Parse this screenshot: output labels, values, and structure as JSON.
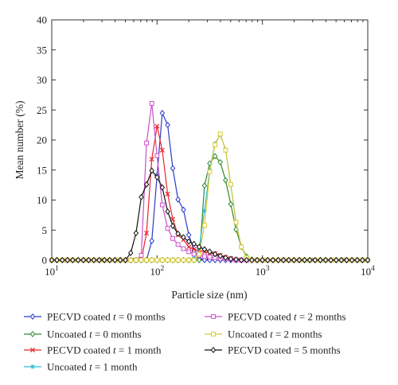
{
  "chart_data": {
    "type": "line",
    "title": "",
    "xlabel": "Particle size (nm)",
    "ylabel": "Mean number (%)",
    "xscale": "log",
    "xlim": [
      10,
      10000
    ],
    "ylim": [
      0,
      40
    ],
    "y_ticks": [
      "0",
      "5",
      "10",
      "15",
      "20",
      "25",
      "30",
      "35",
      "40"
    ],
    "x_ticks": [
      {
        "base": "10",
        "exp": "1",
        "value": 10
      },
      {
        "base": "10",
        "exp": "2",
        "value": 100
      },
      {
        "base": "10",
        "exp": "3",
        "value": 1000
      },
      {
        "base": "10",
        "exp": "4",
        "value": 10000
      }
    ],
    "grid": false,
    "legend_position": "bottom",
    "series": [
      {
        "name": "PECVD coated t = 0 months",
        "legend": {
          "pre": "PECVD coated ",
          "var": "t",
          "post": " = 0 months"
        },
        "color": "#2b3cc8",
        "marker": "diamond",
        "x": [
          10,
          11.2,
          12.6,
          14.1,
          15.8,
          17.8,
          20,
          22.4,
          25.1,
          28.2,
          31.6,
          35.5,
          39.8,
          44.7,
          50.1,
          56.2,
          63.1,
          70.8,
          79.4,
          89.1,
          100,
          112,
          126,
          141,
          158,
          178,
          200,
          224,
          251,
          282,
          316,
          355,
          398,
          447,
          501,
          562,
          631,
          708,
          794,
          891,
          1000,
          1122,
          1259,
          1413,
          1585,
          1778,
          1995,
          2239,
          2512,
          2818,
          3162,
          3548,
          3981,
          4467,
          5012,
          5623,
          6310,
          7079,
          7943,
          8913,
          10000
        ],
        "y": [
          0,
          0,
          0,
          0,
          0,
          0,
          0,
          0,
          0,
          0,
          0,
          0,
          0,
          0,
          0,
          0,
          0,
          0,
          0,
          3.2,
          14.1,
          24.5,
          22.5,
          15.3,
          10.1,
          8.4,
          4.2,
          1.6,
          0.3,
          0,
          0,
          0,
          0,
          0,
          0,
          0,
          0,
          0,
          0,
          0,
          0,
          0,
          0,
          0,
          0,
          0,
          0,
          0,
          0,
          0,
          0,
          0,
          0,
          0,
          0,
          0,
          0,
          0,
          0,
          0,
          0
        ]
      },
      {
        "name": "Uncoated t = 0 months",
        "legend": {
          "pre": "Uncoated ",
          "var": "t",
          "post": " = 0 months"
        },
        "color": "#2e8a2e",
        "marker": "diamond",
        "x": [
          10,
          11.2,
          12.6,
          14.1,
          15.8,
          17.8,
          20,
          22.4,
          25.1,
          28.2,
          31.6,
          35.5,
          39.8,
          44.7,
          50.1,
          56.2,
          63.1,
          70.8,
          79.4,
          89.1,
          100,
          112,
          126,
          141,
          158,
          178,
          200,
          224,
          251,
          282,
          316,
          355,
          398,
          447,
          501,
          562,
          631,
          708,
          794,
          891,
          1000,
          1122,
          1259,
          1413,
          1585,
          1778,
          1995,
          2239,
          2512,
          2818,
          3162,
          3548,
          3981,
          4467,
          5012,
          5623,
          6310,
          7079,
          7943,
          8913,
          10000
        ],
        "y": [
          0,
          0,
          0,
          0,
          0,
          0,
          0,
          0,
          0,
          0,
          0,
          0,
          0,
          0,
          0,
          0,
          0,
          0,
          0,
          0,
          0,
          0,
          0,
          0,
          0,
          0,
          0,
          0,
          0,
          12.4,
          16.1,
          17.3,
          16.3,
          13.3,
          9.3,
          5.1,
          2.2,
          0.6,
          0.1,
          0,
          0,
          0,
          0,
          0,
          0,
          0,
          0,
          0,
          0,
          0,
          0,
          0,
          0,
          0,
          0,
          0,
          0,
          0,
          0,
          0,
          0
        ]
      },
      {
        "name": "PECVD coated t = 1 month",
        "legend": {
          "pre": "PECVD coated ",
          "var": "t",
          "post": " = 1 month"
        },
        "color": "#e8262b",
        "marker": "x",
        "x": [
          10,
          11.2,
          12.6,
          14.1,
          15.8,
          17.8,
          20,
          22.4,
          25.1,
          28.2,
          31.6,
          35.5,
          39.8,
          44.7,
          50.1,
          56.2,
          63.1,
          70.8,
          79.4,
          89.1,
          100,
          112,
          126,
          141,
          158,
          178,
          200,
          224,
          251,
          282,
          316,
          355,
          398,
          447,
          501,
          562,
          631,
          708,
          794,
          891,
          1000,
          1122,
          1259,
          1413,
          1585,
          1778,
          1995,
          2239,
          2512,
          2818,
          3162,
          3548,
          3981,
          4467,
          5012,
          5623,
          6310,
          7079,
          7943,
          8913,
          10000
        ],
        "y": [
          0,
          0,
          0,
          0,
          0,
          0,
          0,
          0,
          0,
          0,
          0,
          0,
          0,
          0,
          0,
          0,
          0,
          0,
          4.5,
          16.8,
          22.3,
          18.3,
          11.0,
          6.8,
          4.2,
          3.4,
          2.2,
          1.8,
          1.6,
          1.4,
          1.2,
          1.1,
          0.8,
          0.5,
          0.3,
          0.1,
          0,
          0,
          0,
          0,
          0,
          0,
          0,
          0,
          0,
          0,
          0,
          0,
          0,
          0,
          0,
          0,
          0,
          0,
          0,
          0,
          0,
          0,
          0,
          0,
          0
        ]
      },
      {
        "name": "Uncoated t = 1 month",
        "legend": {
          "pre": "Uncoated ",
          "var": "t",
          "post": " = 1 month"
        },
        "color": "#2bbcd8",
        "marker": "star",
        "x": [
          10,
          11.2,
          12.6,
          14.1,
          15.8,
          17.8,
          20,
          22.4,
          25.1,
          28.2,
          31.6,
          35.5,
          39.8,
          44.7,
          50.1,
          56.2,
          63.1,
          70.8,
          79.4,
          89.1,
          100,
          112,
          126,
          141,
          158,
          178,
          200,
          224,
          251,
          282,
          316,
          355,
          398,
          447,
          501,
          562,
          631,
          708,
          794,
          891,
          1000,
          1122,
          1259,
          1413,
          1585,
          1778,
          1995,
          2239,
          2512,
          2818,
          3162,
          3548,
          3981,
          4467,
          5012,
          5623,
          6310,
          7079,
          7943,
          8913,
          10000
        ],
        "y": [
          0,
          0,
          0,
          0,
          0,
          0,
          0,
          0,
          0,
          0,
          0,
          0,
          0,
          0,
          0,
          0,
          0,
          0,
          0,
          0,
          0,
          0,
          0,
          0,
          0,
          0,
          0,
          0.3,
          2.0,
          8.2,
          15.0,
          19.4,
          20.9,
          18.4,
          12.5,
          6.3,
          2.2,
          0.4,
          0,
          0,
          0,
          0,
          0,
          0,
          0,
          0,
          0,
          0,
          0,
          0,
          0,
          0,
          0,
          0,
          0,
          0,
          0,
          0,
          0,
          0,
          0
        ]
      },
      {
        "name": "PECVD coated t = 2 months",
        "legend": {
          "pre": "PECVD coated ",
          "var": "t",
          "post": " = 2 months"
        },
        "color": "#cc4fcc",
        "marker": "square",
        "x": [
          10,
          11.2,
          12.6,
          14.1,
          15.8,
          17.8,
          20,
          22.4,
          25.1,
          28.2,
          31.6,
          35.5,
          39.8,
          44.7,
          50.1,
          56.2,
          63.1,
          70.8,
          79.4,
          89.1,
          100,
          112,
          126,
          141,
          158,
          178,
          200,
          224,
          251,
          282,
          316,
          355,
          398,
          447,
          501,
          562,
          631,
          708,
          794,
          891,
          1000,
          1122,
          1259,
          1413,
          1585,
          1778,
          1995,
          2239,
          2512,
          2818,
          3162,
          3548,
          3981,
          4467,
          5012,
          5623,
          6310,
          7079,
          7943,
          8913,
          10000
        ],
        "y": [
          0,
          0,
          0,
          0,
          0,
          0,
          0,
          0,
          0,
          0,
          0,
          0,
          0,
          0,
          0,
          0,
          0,
          0.8,
          19.5,
          26.1,
          17.4,
          9.2,
          5.3,
          3.6,
          2.6,
          1.9,
          1.4,
          1.0,
          0.8,
          0.6,
          0.5,
          0.4,
          0.3,
          0.2,
          0.1,
          0,
          0,
          0,
          0,
          0,
          0,
          0,
          0,
          0,
          0,
          0,
          0,
          0,
          0,
          0,
          0,
          0,
          0,
          0,
          0,
          0,
          0,
          0,
          0,
          0,
          0
        ]
      },
      {
        "name": "Uncoated t = 2 months",
        "legend": {
          "pre": "Uncoated ",
          "var": "t",
          "post": " = 2 months"
        },
        "color": "#d8c830",
        "marker": "square",
        "x": [
          10,
          11.2,
          12.6,
          14.1,
          15.8,
          17.8,
          20,
          22.4,
          25.1,
          28.2,
          31.6,
          35.5,
          39.8,
          44.7,
          50.1,
          56.2,
          63.1,
          70.8,
          79.4,
          89.1,
          100,
          112,
          126,
          141,
          158,
          178,
          200,
          224,
          251,
          282,
          316,
          355,
          398,
          447,
          501,
          562,
          631,
          708,
          794,
          891,
          1000,
          1122,
          1259,
          1413,
          1585,
          1778,
          1995,
          2239,
          2512,
          2818,
          3162,
          3548,
          3981,
          4467,
          5012,
          5623,
          6310,
          7079,
          7943,
          8913,
          10000
        ],
        "y": [
          0,
          0,
          0,
          0,
          0,
          0,
          0,
          0,
          0,
          0,
          0,
          0,
          0,
          0,
          0,
          0,
          0,
          0,
          0,
          0,
          0,
          0,
          0,
          0,
          0,
          0,
          0,
          0,
          1.0,
          5.8,
          14.7,
          19.2,
          21.0,
          18.3,
          12.6,
          6.3,
          2.2,
          0.4,
          0,
          0,
          0,
          0,
          0,
          0,
          0,
          0,
          0,
          0,
          0,
          0,
          0,
          0,
          0,
          0,
          0,
          0,
          0,
          0,
          0,
          0,
          0
        ]
      },
      {
        "name": "PECVD coated = 5 months",
        "legend": {
          "pre": "PECVD coated = 5 months",
          "var": "",
          "post": ""
        },
        "color": "#111111",
        "marker": "diamond",
        "x": [
          10,
          11.2,
          12.6,
          14.1,
          15.8,
          17.8,
          20,
          22.4,
          25.1,
          28.2,
          31.6,
          35.5,
          39.8,
          44.7,
          50.1,
          56.2,
          63.1,
          70.8,
          79.4,
          89.1,
          100,
          112,
          126,
          141,
          158,
          178,
          200,
          224,
          251,
          282,
          316,
          355,
          398,
          447,
          501,
          562,
          631,
          708,
          794,
          891,
          1000,
          1122,
          1259,
          1413,
          1585,
          1778,
          1995,
          2239,
          2512,
          2818,
          3162,
          3548,
          3981,
          4467,
          5012,
          5623,
          6310,
          7079,
          7943,
          8913,
          10000
        ],
        "y": [
          0,
          0,
          0,
          0,
          0,
          0,
          0,
          0,
          0,
          0,
          0,
          0,
          0,
          0,
          0,
          1.2,
          4.5,
          10.5,
          12.6,
          14.9,
          13.8,
          12.1,
          8.1,
          5.7,
          4.4,
          3.8,
          3.1,
          2.7,
          2.2,
          1.8,
          1.4,
          1.0,
          0.7,
          0.4,
          0.2,
          0.1,
          0,
          0,
          0,
          0,
          0,
          0,
          0,
          0,
          0,
          0,
          0,
          0,
          0,
          0,
          0,
          0,
          0,
          0,
          0,
          0,
          0,
          0,
          0,
          0,
          0
        ]
      }
    ]
  }
}
